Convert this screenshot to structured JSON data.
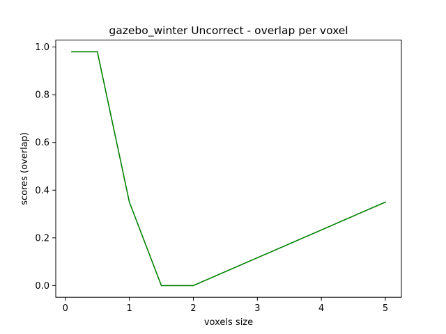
{
  "chart_data": {
    "type": "line",
    "title": "gazebo_winter Uncorrect - overlap per voxel",
    "xlabel": "voxels size",
    "ylabel": "scores (overlap)",
    "xlim": [
      -0.15,
      5.25
    ],
    "ylim": [
      -0.049,
      1.029
    ],
    "x_ticks": [
      0,
      1,
      2,
      3,
      4,
      5
    ],
    "x_tick_labels": [
      "0",
      "1",
      "2",
      "3",
      "4",
      "5"
    ],
    "y_ticks": [
      0.0,
      0.2,
      0.4,
      0.6,
      0.8,
      1.0
    ],
    "y_tick_labels": [
      "0.0",
      "0.2",
      "0.4",
      "0.6",
      "0.8",
      "1.0"
    ],
    "grid": false,
    "series": [
      {
        "color": "#008000",
        "x": [
          0.1,
          0.5,
          1.0,
          1.5,
          2.0,
          5.0
        ],
        "y": [
          0.98,
          0.98,
          0.35,
          0.0,
          0.0,
          0.35
        ]
      }
    ]
  }
}
